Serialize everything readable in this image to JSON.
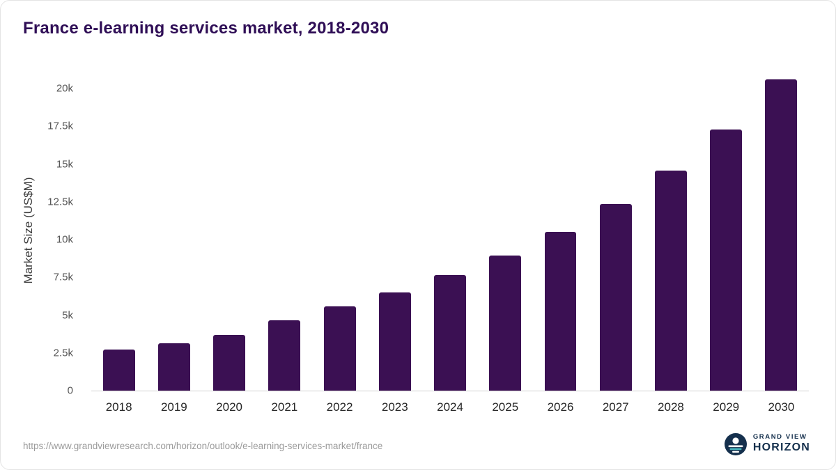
{
  "header": {
    "title": "France e-learning services market, 2018-2030"
  },
  "chart_data": {
    "type": "bar",
    "title": "France e-learning services market, 2018-2030",
    "categories": [
      "2018",
      "2019",
      "2020",
      "2021",
      "2022",
      "2023",
      "2024",
      "2025",
      "2026",
      "2027",
      "2028",
      "2029",
      "2030"
    ],
    "values": [
      2700,
      3150,
      3680,
      4650,
      5600,
      6500,
      7650,
      8950,
      10500,
      12350,
      14550,
      17300,
      20600
    ],
    "xlabel": "",
    "ylabel": "Market Size (US$M)",
    "ylim": [
      0,
      21200
    ],
    "yticks": [
      {
        "label": "0",
        "value": 0
      },
      {
        "label": "2.5k",
        "value": 2500
      },
      {
        "label": "5k",
        "value": 5000
      },
      {
        "label": "7.5k",
        "value": 7500
      },
      {
        "label": "10k",
        "value": 10000
      },
      {
        "label": "12.5k",
        "value": 12500
      },
      {
        "label": "15k",
        "value": 15000
      },
      {
        "label": "17.5k",
        "value": 17500
      },
      {
        "label": "20k",
        "value": 20000
      }
    ],
    "grid": false,
    "legend": "none",
    "bar_color": "#3b1053"
  },
  "footer": {
    "source_url": "https://www.grandviewresearch.com/horizon/outlook/e-learning-services-market/france",
    "logo": {
      "line1": "GRAND VIEW",
      "line2": "HORIZON"
    }
  },
  "colors": {
    "title_text": "#2f0e56",
    "bar": "#3b1053",
    "axis_text": "#555555",
    "url_text": "#9b9b9b",
    "logo_navy": "#15304d",
    "logo_teal": "#49b8c0"
  }
}
